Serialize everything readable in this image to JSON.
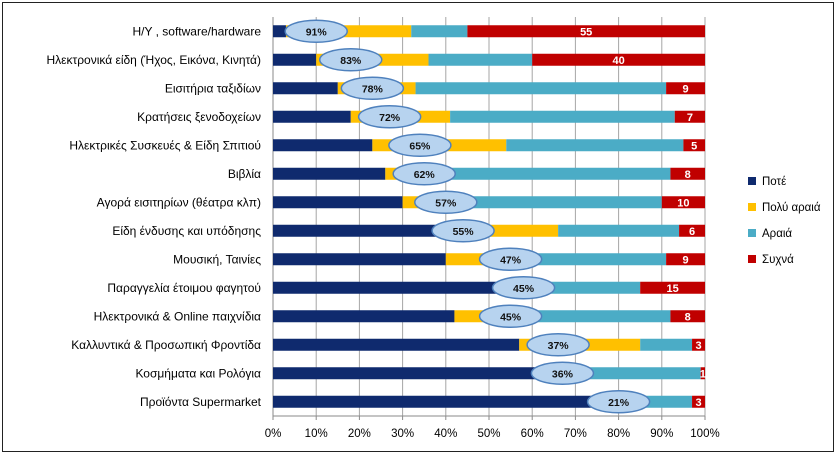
{
  "chart_data": {
    "type": "bar",
    "orientation": "horizontal",
    "stacked": "percent",
    "categories": [
      "Η/Υ , software/hardware",
      "Ηλεκτρονικά είδη (Ήχος, Εικόνα, Κινητά)",
      "Εισιτήρια ταξιδίων",
      "Κρατήσεις ξενοδοχείων",
      "Ηλεκτρικές Συσκευές & Είδη Σπιτιού",
      "Βιβλία",
      "Αγορά εισιτηρίων (θέατρα κλπ)",
      "Είδη ένδυσης και υπόδησης",
      "Μουσική, Ταινίες",
      "Παραγγελία έτοιμου φαγητού",
      "Ηλεκτρονικά & Online παιχνίδια",
      "Καλλυντικά & Προσωπική Φροντίδα",
      "Κοσμήματα και Ρολόγια",
      "Προϊόντα Supermarket"
    ],
    "series": [
      {
        "name": "Ποτέ",
        "color": "#0f2a6e",
        "values": [
          3,
          10,
          15,
          18,
          23,
          26,
          30,
          45,
          40,
          55,
          42,
          57,
          63,
          76
        ]
      },
      {
        "name": "Πολύ αραιά",
        "color": "#ffc000",
        "values": [
          29,
          26,
          18,
          23,
          31,
          13,
          14,
          21,
          14,
          1,
          15,
          28,
          8,
          2
        ]
      },
      {
        "name": "Αραιά",
        "color": "#4bacc6",
        "values": [
          13,
          24,
          58,
          52,
          41,
          53,
          46,
          28,
          37,
          29,
          35,
          12,
          28,
          19
        ]
      },
      {
        "name": "Συχνά",
        "color": "#c00000",
        "values": [
          55,
          40,
          9,
          7,
          5,
          8,
          10,
          6,
          9,
          15,
          8,
          3,
          1,
          3
        ]
      }
    ],
    "bubble_labels": [
      "91%",
      "83%",
      "78%",
      "72%",
      "65%",
      "62%",
      "57%",
      "55%",
      "47%",
      "45%",
      "45%",
      "37%",
      "36%",
      "21%"
    ],
    "bubble_positions": [
      10,
      18,
      23,
      27,
      34,
      35,
      40,
      44,
      55,
      58,
      55,
      66,
      67,
      80
    ],
    "frequent_labels": [
      "55",
      "40",
      "9",
      "7",
      "5",
      "8",
      "10",
      "6",
      "9",
      "15",
      "8",
      "3",
      "1",
      "3"
    ],
    "x_ticks": [
      "0%",
      "10%",
      "20%",
      "30%",
      "40%",
      "50%",
      "60%",
      "70%",
      "80%",
      "90%",
      "100%"
    ],
    "xlim": [
      0,
      100
    ],
    "grid": true,
    "legend": "right",
    "title": "",
    "xlabel": "",
    "ylabel": ""
  }
}
